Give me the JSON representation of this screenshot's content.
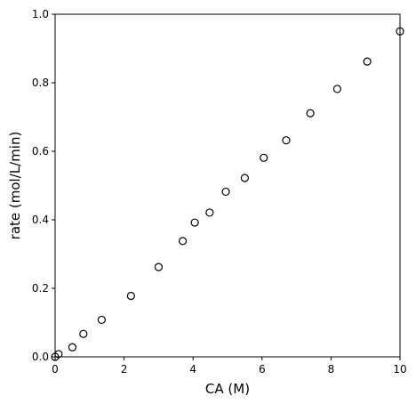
{
  "chart_data": {
    "type": "scatter",
    "xlabel": "CA (M)",
    "ylabel": "rate (mol/L/min)",
    "xlim": [
      0,
      10
    ],
    "ylim": [
      0,
      1.0
    ],
    "x_ticks": [
      0,
      2,
      4,
      6,
      8,
      10
    ],
    "y_ticks": [
      0.0,
      0.2,
      0.4,
      0.6,
      0.8,
      1.0
    ],
    "x_tick_labels": [
      "0",
      "2",
      "4",
      "6",
      "8",
      "10"
    ],
    "y_tick_labels": [
      "0.0",
      "0.2",
      "0.4",
      "0.6",
      "0.8",
      "1.0"
    ],
    "grid": false,
    "marker": "open-circle",
    "marker_color": "#000000",
    "x": [
      0.0,
      0.1,
      0.5,
      0.82,
      1.35,
      2.2,
      3.0,
      3.7,
      4.05,
      4.48,
      4.95,
      5.5,
      6.05,
      6.7,
      7.4,
      8.18,
      9.05,
      10.0
    ],
    "y": [
      0.0,
      0.008,
      0.028,
      0.067,
      0.108,
      0.178,
      0.262,
      0.338,
      0.392,
      0.421,
      0.482,
      0.522,
      0.581,
      0.632,
      0.711,
      0.782,
      0.862,
      0.95
    ]
  }
}
